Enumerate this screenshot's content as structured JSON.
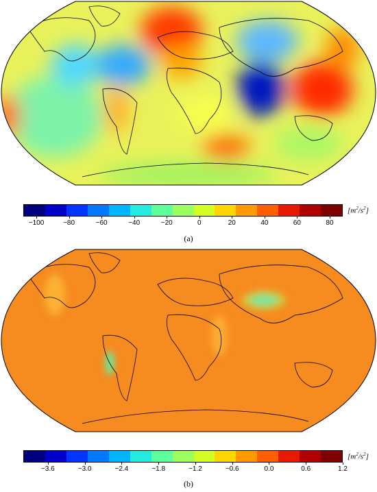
{
  "panel_a": {
    "caption": "(a)",
    "colorbar": {
      "min": -108,
      "max": 88,
      "ticks": [
        -100,
        -80,
        -60,
        -40,
        -20,
        0,
        20,
        40,
        60,
        80
      ],
      "tick_labels": [
        "−100",
        "−80",
        "−60",
        "−40",
        "−20",
        "0",
        "20",
        "40",
        "60",
        "80"
      ],
      "unit_base": "[m",
      "unit_sup1": "2",
      "unit_mid": "/s",
      "unit_sup2": "2",
      "unit_end": "]"
    },
    "map_background": "#e9f25a"
  },
  "panel_b": {
    "caption": "(b)",
    "colorbar": {
      "min": -4.0,
      "max": 1.2,
      "ticks": [
        -3.6,
        -3.0,
        -2.4,
        -1.8,
        -1.2,
        -0.6,
        0.0,
        0.6,
        1.2
      ],
      "tick_labels": [
        "−3.6",
        "−3.0",
        "−2.4",
        "−1.8",
        "−1.2",
        "−0.6",
        "0.0",
        "0.6",
        "1.2"
      ],
      "unit_base": "[m",
      "unit_sup1": "2",
      "unit_mid": "/s",
      "unit_sup2": "2",
      "unit_end": "]"
    },
    "map_background": "#f68b1f"
  },
  "colormap": [
    "#00007f",
    "#0000c8",
    "#0035ff",
    "#0079ff",
    "#00b4ff",
    "#23ebe0",
    "#5eff9b",
    "#9aff5f",
    "#d3ff24",
    "#ffd600",
    "#ff9a00",
    "#ff5f00",
    "#e81900",
    "#b00000",
    "#7f0000"
  ]
}
